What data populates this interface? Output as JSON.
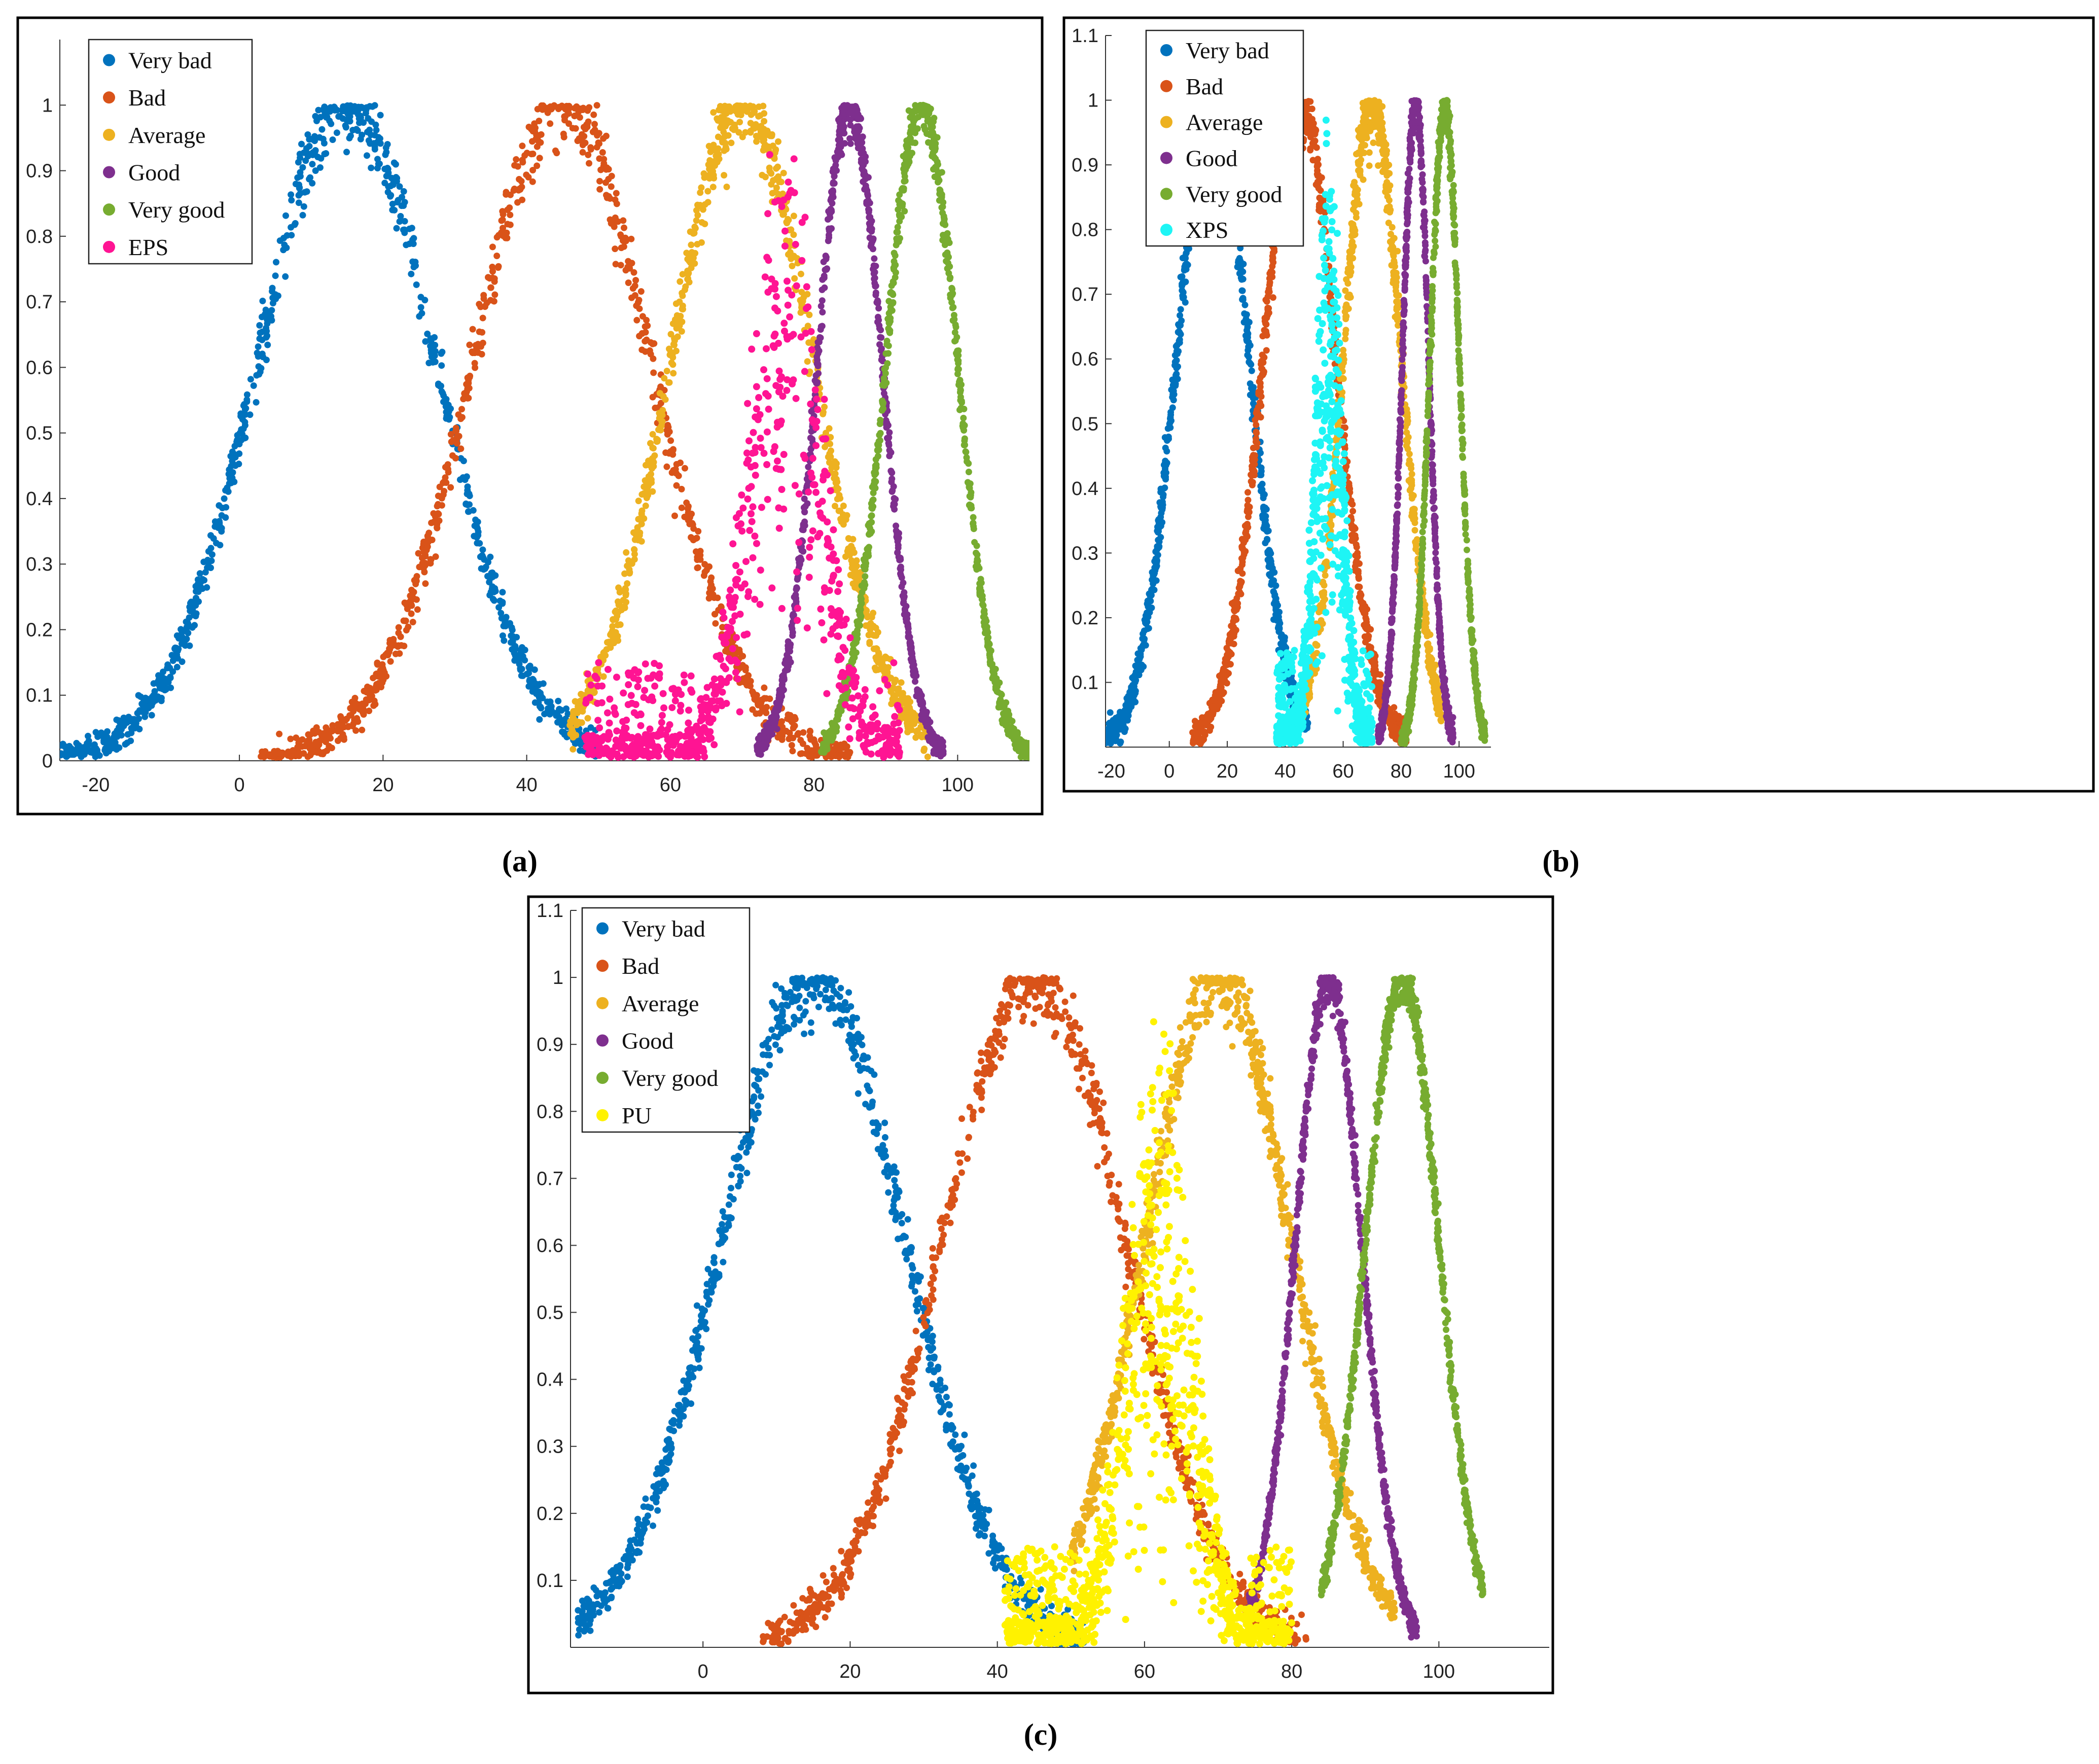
{
  "figure": {
    "captions": [
      "(a)",
      "(b)",
      "(c)"
    ]
  },
  "colors": {
    "very_bad": "#0072BD",
    "bad": "#D95319",
    "average": "#EDB120",
    "good": "#7E2F8E",
    "very_good": "#77AC30",
    "eps": "#FF1493",
    "xps": "#1EF5F5",
    "pu": "#FFF200"
  },
  "chart_data": [
    {
      "type": "scatter",
      "panel": "(a)",
      "title": "",
      "xlabel": "",
      "ylabel": "",
      "xlim": [
        -25,
        110
      ],
      "ylim": [
        0,
        1.1
      ],
      "xticks": [
        -20,
        0,
        20,
        40,
        60,
        80,
        100
      ],
      "yticks": [
        0,
        0.1,
        0.2,
        0.3,
        0.4,
        0.5,
        0.6,
        0.7,
        0.8,
        0.9,
        1
      ],
      "legend_position": "top-left",
      "series": [
        {
          "name": "Very bad",
          "color_key": "very_bad",
          "center": 15,
          "sigma": 12.5,
          "x_range": [
            -25,
            50
          ],
          "points": 900,
          "noise": 0.03
        },
        {
          "name": "Bad",
          "color_key": "bad",
          "center": 45,
          "sigma": 12.5,
          "x_range": [
            3,
            85
          ],
          "points": 900,
          "noise": 0.03
        },
        {
          "name": "Average",
          "color_key": "average",
          "center": 70,
          "sigma": 10,
          "x_range": [
            46,
            96
          ],
          "points": 800,
          "noise": 0.03
        },
        {
          "name": "Good",
          "color_key": "good",
          "center": 85,
          "sigma": 4.5,
          "x_range": [
            72,
            98
          ],
          "points": 800,
          "noise": 0.02
        },
        {
          "name": "Very good",
          "color_key": "very_good",
          "center": 95,
          "sigma": 5,
          "x_range": [
            81,
            110
          ],
          "points": 800,
          "noise": 0.02
        },
        {
          "name": "EPS",
          "color_key": "eps",
          "center": 76,
          "sigma": 5,
          "x_range": [
            48,
            92
          ],
          "points": 750,
          "noise": 0.25
        }
      ]
    },
    {
      "type": "scatter",
      "panel": "(b)",
      "title": "",
      "xlabel": "",
      "ylabel": "",
      "xlim": [
        -22,
        111
      ],
      "ylim": [
        0,
        1.1
      ],
      "xticks": [
        -20,
        0,
        20,
        40,
        60,
        80,
        100
      ],
      "yticks": [
        0.1,
        0.2,
        0.3,
        0.4,
        0.5,
        0.6,
        0.7,
        0.8,
        0.9,
        1,
        1.1
      ],
      "legend_position": "top-left",
      "series": [
        {
          "name": "Very bad",
          "color_key": "very_bad",
          "center": 15,
          "sigma": 12.5,
          "x_range": [
            -22,
            48
          ],
          "points": 900,
          "noise": 0.03
        },
        {
          "name": "Bad",
          "color_key": "bad",
          "center": 45,
          "sigma": 12.5,
          "x_range": [
            8,
            82
          ],
          "points": 900,
          "noise": 0.03
        },
        {
          "name": "Average",
          "color_key": "average",
          "center": 70,
          "sigma": 10,
          "x_range": [
            43,
            94
          ],
          "points": 800,
          "noise": 0.03
        },
        {
          "name": "Good",
          "color_key": "good",
          "center": 85,
          "sigma": 4.5,
          "x_range": [
            72,
            98
          ],
          "points": 800,
          "noise": 0.02
        },
        {
          "name": "Very good",
          "color_key": "very_good",
          "center": 95,
          "sigma": 5,
          "x_range": [
            80,
            109
          ],
          "points": 800,
          "noise": 0.02
        },
        {
          "name": "XPS",
          "color_key": "xps",
          "center": 55,
          "sigma": 4.5,
          "x_range": [
            37,
            70
          ],
          "points": 800,
          "noise": 0.25
        }
      ]
    },
    {
      "type": "scatter",
      "panel": "(c)",
      "title": "",
      "xlabel": "",
      "ylabel": "",
      "xlim": [
        -18,
        115
      ],
      "ylim": [
        0,
        1.1
      ],
      "xticks": [
        0,
        20,
        40,
        60,
        80,
        100
      ],
      "yticks": [
        0.1,
        0.2,
        0.3,
        0.4,
        0.5,
        0.6,
        0.7,
        0.8,
        0.9,
        1,
        1.1
      ],
      "legend_position": "top-left",
      "series": [
        {
          "name": "Very bad",
          "color_key": "very_bad",
          "center": 15,
          "sigma": 12.5,
          "x_range": [
            -17,
            52
          ],
          "points": 900,
          "noise": 0.03
        },
        {
          "name": "Bad",
          "color_key": "bad",
          "center": 45,
          "sigma": 12.5,
          "x_range": [
            8,
            82
          ],
          "points": 900,
          "noise": 0.03
        },
        {
          "name": "Average",
          "color_key": "average",
          "center": 70,
          "sigma": 10,
          "x_range": [
            50,
            94
          ],
          "points": 800,
          "noise": 0.03
        },
        {
          "name": "Good",
          "color_key": "good",
          "center": 85,
          "sigma": 4.5,
          "x_range": [
            74,
            97
          ],
          "points": 800,
          "noise": 0.02
        },
        {
          "name": "Very good",
          "color_key": "very_good",
          "center": 95,
          "sigma": 5,
          "x_range": [
            84,
            106
          ],
          "points": 800,
          "noise": 0.02
        },
        {
          "name": "PU",
          "color_key": "pu",
          "center": 62,
          "sigma": 4.5,
          "x_range": [
            41,
            80
          ],
          "points": 1100,
          "noise": 0.3
        }
      ]
    }
  ]
}
